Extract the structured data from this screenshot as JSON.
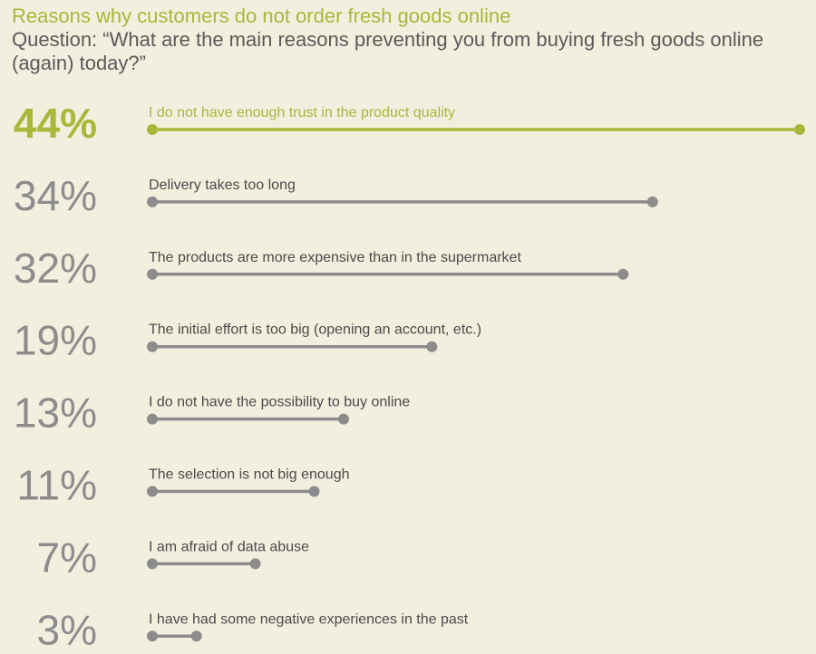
{
  "header": {
    "title": "Reasons why customers do not order fresh goods online",
    "question": "Question: “What are the main reasons preventing you from buying fresh goods online (again) today?”"
  },
  "colors": {
    "background": "#f2efdf",
    "highlight": "#a9b73a",
    "bar": "#8c8c8c",
    "text": "#4a4a4a"
  },
  "chart_data": {
    "type": "bar",
    "orientation": "horizontal",
    "highlight_index": 0,
    "categories": [
      "I do not have enough trust in the product quality",
      "Delivery takes too long",
      "The products are more expensive than in the supermarket",
      "The initial effort is too big (opening an account, etc.)",
      "I do not have the possibility to buy online",
      "The selection is not big enough",
      "I am afraid of data abuse",
      "I have had some negative experiences in the past"
    ],
    "values": [
      44,
      34,
      32,
      19,
      13,
      11,
      7,
      3
    ],
    "value_labels": [
      "44%",
      "34%",
      "32%",
      "19%",
      "13%",
      "11%",
      "7%",
      "3%"
    ],
    "unit": "%",
    "xlim": [
      0,
      44
    ]
  }
}
